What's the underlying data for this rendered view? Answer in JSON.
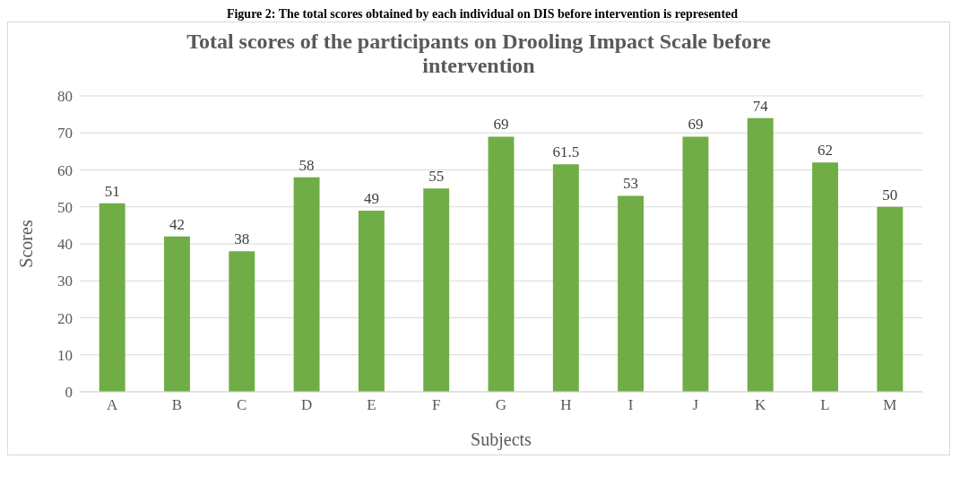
{
  "chart_data": {
    "type": "bar",
    "title": "Total scores of the participants on Drooling Impact Scale before intervention",
    "xlabel": "Subjects",
    "ylabel": "Scores",
    "annotations": [
      "Figure 2: The total scores obtained by each individual on DIS before intervention is represented"
    ],
    "categories": [
      "A",
      "B",
      "C",
      "D",
      "E",
      "F",
      "G",
      "H",
      "I",
      "J",
      "K",
      "L",
      "M"
    ],
    "values": [
      51,
      42,
      38,
      58,
      49,
      55,
      69,
      61.5,
      53,
      69,
      74,
      62,
      50
    ],
    "color": "#70ad47",
    "ylim": [
      0,
      80
    ],
    "yticks": [
      0,
      10,
      20,
      30,
      40,
      50,
      60,
      70,
      80
    ],
    "grid": "y",
    "data_labels": true
  }
}
